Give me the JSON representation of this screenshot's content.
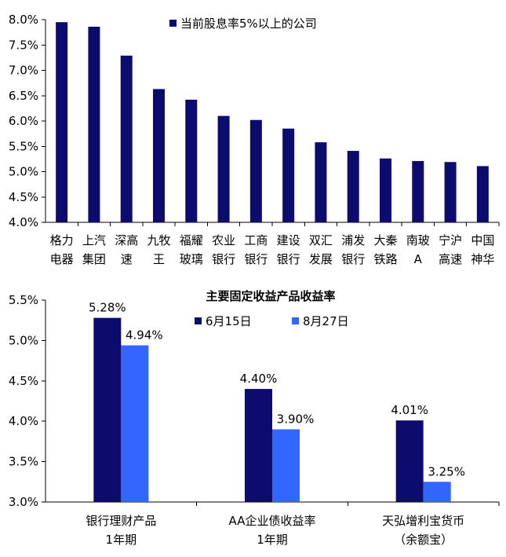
{
  "chart_data": [
    {
      "type": "bar",
      "title": "",
      "legend": {
        "label": "当前股息率5%以上的公司",
        "placement": "top-right"
      },
      "categories": [
        [
          "格力",
          "电器"
        ],
        [
          "上汽",
          "集团"
        ],
        [
          "深高",
          "速"
        ],
        [
          "九牧",
          "王"
        ],
        [
          "福耀",
          "玻璃"
        ],
        [
          "农业",
          "银行"
        ],
        [
          "工商",
          "银行"
        ],
        [
          "建设",
          "银行"
        ],
        [
          "双汇",
          "发展"
        ],
        [
          "浦发",
          "银行"
        ],
        [
          "大秦",
          "铁路"
        ],
        [
          "南玻",
          "A"
        ],
        [
          "宁沪",
          "高速"
        ],
        [
          "中国",
          "神华"
        ]
      ],
      "series": [
        {
          "name": "当前股息率5%以上的公司",
          "values": [
            7.95,
            7.86,
            7.29,
            6.63,
            6.42,
            6.1,
            6.02,
            5.85,
            5.58,
            5.41,
            5.26,
            5.21,
            5.19,
            5.11
          ]
        }
      ],
      "ylim": [
        4.0,
        8.0
      ],
      "yticks": [
        "4.0%",
        "4.5%",
        "5.0%",
        "5.5%",
        "6.0%",
        "6.5%",
        "7.0%",
        "7.5%",
        "8.0%"
      ],
      "colors": {
        "bar": "#0c0c6e"
      }
    },
    {
      "type": "bar",
      "title": "主要固定收益产品收益率",
      "legend_placement": "top-center",
      "categories": [
        [
          "银行理财产品",
          "1年期"
        ],
        [
          "AA企业债收益率",
          "1年期"
        ],
        [
          "天弘增利宝货币",
          "（余额宝）"
        ]
      ],
      "series": [
        {
          "name": "6月15日",
          "values": [
            5.28,
            4.4,
            4.01
          ],
          "labels": [
            "5.28%",
            "4.40%",
            "4.01%"
          ],
          "color": "#0c0c6e"
        },
        {
          "name": "8月27日",
          "values": [
            4.94,
            3.9,
            3.25
          ],
          "labels": [
            "4.94%",
            "3.90%",
            "3.25%"
          ],
          "color": "#3366ff"
        }
      ],
      "ylim": [
        3.0,
        5.5
      ],
      "yticks": [
        "3.0%",
        "3.5%",
        "4.0%",
        "4.5%",
        "5.0%",
        "5.5%"
      ]
    }
  ]
}
